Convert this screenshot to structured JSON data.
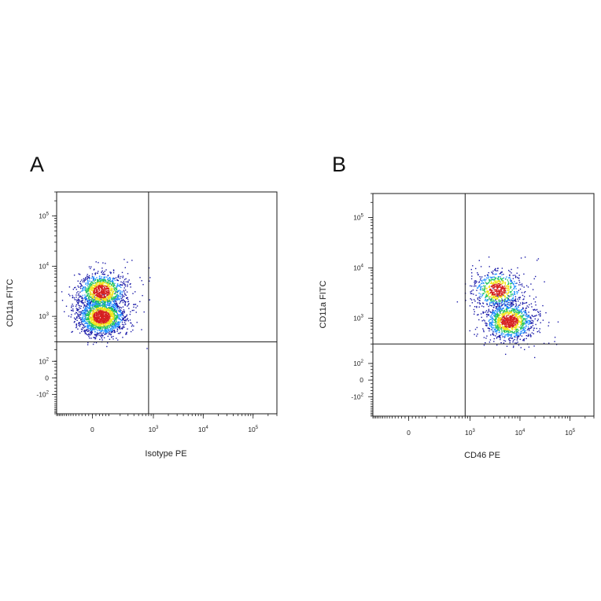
{
  "chart_data": [
    {
      "type": "scatter",
      "panel": "A",
      "xlabel": "Isotype PE",
      "ylabel": "CD11a FITC",
      "x_scale": "biexponential",
      "y_scale": "biexponential",
      "xlim": [
        -300,
        300000
      ],
      "ylim": [
        -300,
        300000
      ],
      "x_ticks": [
        {
          "value": 0,
          "base": "0",
          "exp": ""
        },
        {
          "value": 1000,
          "base": "10",
          "exp": "3"
        },
        {
          "value": 10000,
          "base": "10",
          "exp": "4"
        },
        {
          "value": 100000,
          "base": "10",
          "exp": "5"
        }
      ],
      "y_ticks": [
        {
          "value": -100,
          "base": "-10",
          "exp": "2"
        },
        {
          "value": 0,
          "base": "0",
          "exp": ""
        },
        {
          "value": 100,
          "base": "10",
          "exp": "2"
        },
        {
          "value": 1000,
          "base": "10",
          "exp": "3"
        },
        {
          "value": 10000,
          "base": "10",
          "exp": "4"
        },
        {
          "value": 100000,
          "base": "10",
          "exp": "5"
        }
      ],
      "quadrant_gate": {
        "x": 800,
        "y": 300
      },
      "populations": [
        {
          "x_center": 50,
          "y_center": 1000,
          "count": 1700,
          "color": "density-heatmap"
        },
        {
          "x_center": 50,
          "y_center": 3200,
          "count": 1100,
          "color": "density-heatmap"
        }
      ],
      "grid": false,
      "legend": "none"
    },
    {
      "type": "scatter",
      "panel": "B",
      "xlabel": "CD46 PE",
      "ylabel": "CD11a FITC",
      "x_scale": "biexponential",
      "y_scale": "biexponential",
      "xlim": [
        -300,
        300000
      ],
      "ylim": [
        -300,
        300000
      ],
      "x_ticks": [
        {
          "value": 0,
          "base": "0",
          "exp": ""
        },
        {
          "value": 1000,
          "base": "10",
          "exp": "3"
        },
        {
          "value": 10000,
          "base": "10",
          "exp": "4"
        },
        {
          "value": 100000,
          "base": "10",
          "exp": "5"
        }
      ],
      "y_ticks": [
        {
          "value": -100,
          "base": "-10",
          "exp": "2"
        },
        {
          "value": 0,
          "base": "0",
          "exp": ""
        },
        {
          "value": 100,
          "base": "10",
          "exp": "2"
        },
        {
          "value": 1000,
          "base": "10",
          "exp": "3"
        },
        {
          "value": 10000,
          "base": "10",
          "exp": "4"
        },
        {
          "value": 100000,
          "base": "10",
          "exp": "5"
        }
      ],
      "quadrant_gate": {
        "x": 800,
        "y": 300
      },
      "populations": [
        {
          "x_center": 3500,
          "y_center": 3800,
          "count": 700,
          "color": "density-heatmap"
        },
        {
          "x_center": 6000,
          "y_center": 900,
          "count": 1200,
          "color": "density-heatmap"
        }
      ],
      "grid": false,
      "legend": "none"
    }
  ],
  "colors": {
    "density_low": "#1a1aa8",
    "density_mid_low": "#1e90ff",
    "density_mid": "#22c55e",
    "density_mid_high": "#f2e41a",
    "density_high": "#d62020",
    "frame": "#1a1a1a"
  }
}
